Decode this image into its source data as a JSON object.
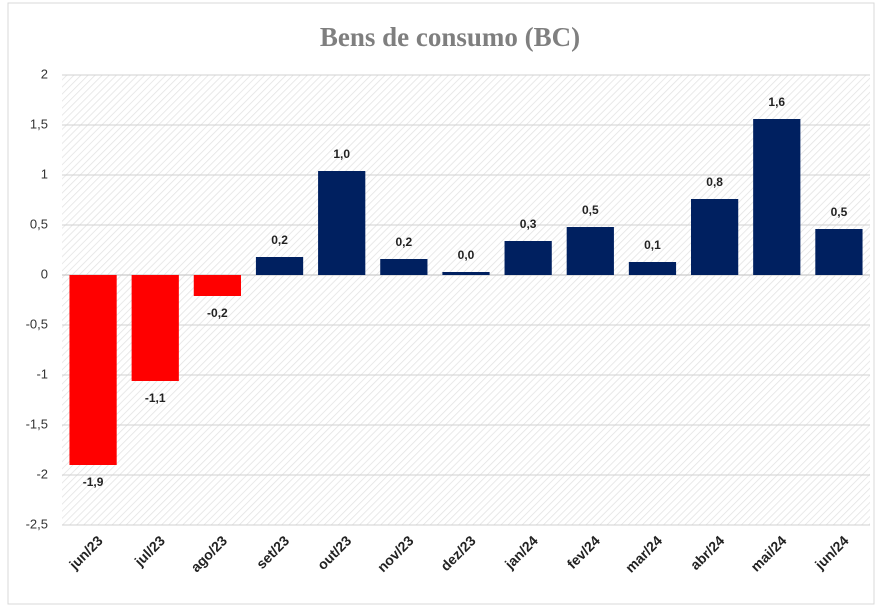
{
  "chart_data": {
    "type": "bar",
    "title": "Bens de consumo (BC)",
    "categories": [
      "jun/23",
      "jul/23",
      "ago/23",
      "set/23",
      "out/23",
      "nov/23",
      "dez/23",
      "jan/24",
      "fev/24",
      "mar/24",
      "abr/24",
      "mai/24",
      "jun/24"
    ],
    "values": [
      -1.9,
      -1.06,
      -0.21,
      0.18,
      1.04,
      0.16,
      0.03,
      0.34,
      0.48,
      0.13,
      0.76,
      1.56,
      0.46
    ],
    "value_labels": [
      "-1,9",
      "-1,1",
      "-0,2",
      "0,2",
      "1,0",
      "0,2",
      "0,0",
      "0,3",
      "0,5",
      "0,1",
      "0,8",
      "1,6",
      "0,5"
    ],
    "color": "#002060",
    "negative_color": "#ff0000",
    "ylim": [
      -2.5,
      2
    ],
    "yticks": [
      2,
      {
        "value": 1.5,
        "label": "1,5"
      },
      1,
      {
        "value": 0.5,
        "label": "0,5"
      },
      0,
      {
        "value": -0.5,
        "label": "-0,5"
      },
      -1,
      {
        "value": -1.5,
        "label": "-1,5"
      },
      -2,
      {
        "value": -2.5,
        "label": "-2,5"
      }
    ],
    "grid": true
  }
}
